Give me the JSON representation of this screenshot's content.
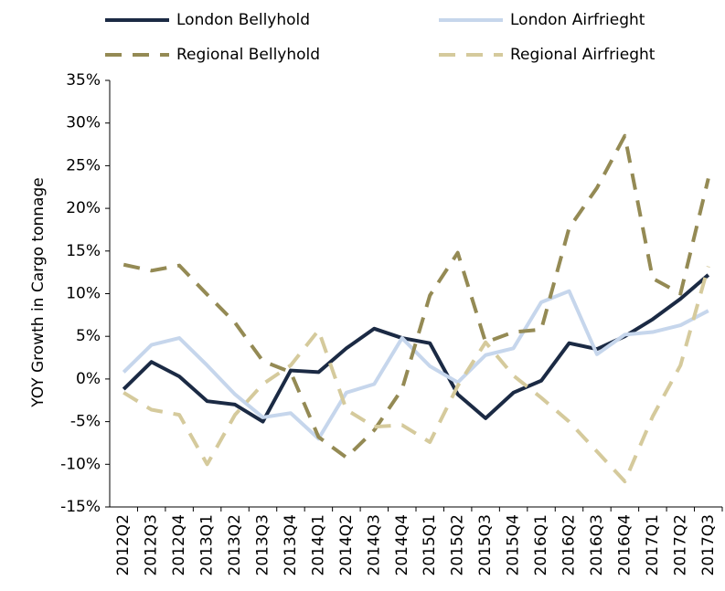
{
  "chart_data": {
    "type": "line",
    "y_label": "YOY Growth in Cargo tonnage",
    "categories": [
      "2012Q2",
      "2012Q3",
      "2012Q4",
      "2013Q1",
      "2013Q2",
      "2013Q3",
      "2013Q4",
      "2014Q1",
      "2014Q2",
      "2014Q3",
      "2014Q4",
      "2015Q1",
      "2015Q2",
      "2015Q3",
      "2015Q4",
      "2016Q1",
      "2016Q2",
      "2016Q3",
      "2016Q4",
      "2017Q1",
      "2017Q2",
      "2017Q3"
    ],
    "series": [
      {
        "name": "London Bellyhold",
        "color": "#1b2a44",
        "dashed": false,
        "values": [
          -1.2,
          2.0,
          0.3,
          -2.6,
          -3.0,
          -5.0,
          1.0,
          0.8,
          3.6,
          5.9,
          4.8,
          4.2,
          -1.8,
          -4.6,
          -1.6,
          -0.2,
          4.2,
          3.5,
          5.0,
          7.0,
          9.4,
          12.2
        ]
      },
      {
        "name": "London Airfrieght",
        "color": "#c6d6ec",
        "dashed": false,
        "values": [
          0.8,
          4.0,
          4.8,
          1.6,
          -1.8,
          -4.5,
          -4.0,
          -7.0,
          -1.6,
          -0.6,
          4.8,
          1.5,
          -0.4,
          2.8,
          3.6,
          9.0,
          10.3,
          2.9,
          5.2,
          5.5,
          6.3,
          8.0
        ]
      },
      {
        "name": "Regional Bellyhold",
        "color": "#948a54",
        "dashed": true,
        "values": [
          13.4,
          12.7,
          13.3,
          9.9,
          6.6,
          2.1,
          0.8,
          -6.8,
          -9.2,
          -6.0,
          -1.2,
          9.8,
          14.8,
          4.3,
          5.5,
          5.8,
          17.7,
          22.4,
          28.5,
          11.8,
          10.0,
          23.5
        ]
      },
      {
        "name": "Regional Airfrieght",
        "color": "#d5ca9c",
        "dashed": true,
        "values": [
          -1.6,
          -3.6,
          -4.2,
          -10.0,
          -4.2,
          -0.6,
          1.6,
          5.7,
          -3.6,
          -5.6,
          -5.4,
          -7.4,
          -0.8,
          4.3,
          0.4,
          -2.2,
          -5.0,
          -8.5,
          -12.0,
          -4.4,
          1.6,
          13.2
        ]
      }
    ],
    "ylim": [
      -15,
      35
    ],
    "yticks": [
      {
        "value": -15,
        "label": "-15%"
      },
      {
        "value": -10,
        "label": "-10%"
      },
      {
        "value": -5,
        "label": "-5%"
      },
      {
        "value": 0,
        "label": "0%"
      },
      {
        "value": 5,
        "label": "5%"
      },
      {
        "value": 10,
        "label": "10%"
      },
      {
        "value": 15,
        "label": "15%"
      },
      {
        "value": 20,
        "label": "20%"
      },
      {
        "value": 25,
        "label": "25%"
      },
      {
        "value": 30,
        "label": "30%"
      },
      {
        "value": 35,
        "label": "35%"
      }
    ],
    "grid": false,
    "legend": "top"
  }
}
